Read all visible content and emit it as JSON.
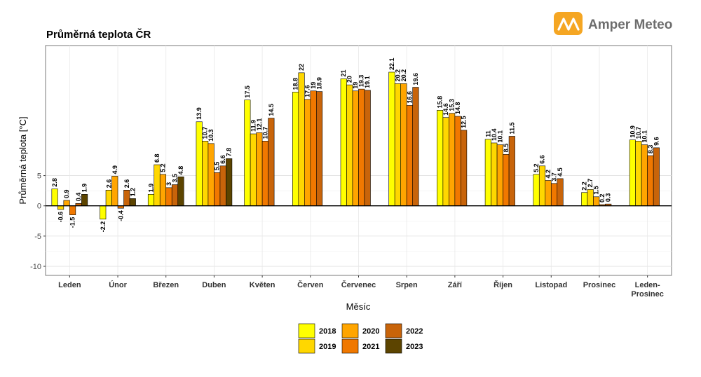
{
  "brand": {
    "name": "Amper Meteo",
    "accent": "#f5a623"
  },
  "chart_data": {
    "type": "bar",
    "title": "Průměrná teplota ČR",
    "xlabel": "Měsíc",
    "ylabel": "Průměrná teplota [°C]",
    "ylim": [
      -11.5,
      26.5
    ],
    "yticks": [
      -10,
      -5,
      0,
      5
    ],
    "grid": true,
    "legend_position": "bottom",
    "categories": [
      [
        "Leden"
      ],
      [
        "Únor"
      ],
      [
        "Březen"
      ],
      [
        "Duben"
      ],
      [
        "Květen"
      ],
      [
        "Červen"
      ],
      [
        "Červenec"
      ],
      [
        "Srpen"
      ],
      [
        "Září"
      ],
      [
        "Říjen"
      ],
      [
        "Listopad"
      ],
      [
        "Prosinec"
      ],
      [
        "Leden-",
        "Prosinec"
      ]
    ],
    "series": [
      {
        "name": "2018",
        "color": "#ffff00",
        "values": [
          2.8,
          -2.2,
          1.9,
          13.9,
          17.5,
          18.8,
          21,
          22.1,
          15.8,
          11,
          5.2,
          2.2,
          10.9
        ]
      },
      {
        "name": "2019",
        "color": "#ffd700",
        "values": [
          -0.6,
          2.6,
          6.8,
          10.7,
          11.9,
          22,
          20,
          20.2,
          14.6,
          10.4,
          6.6,
          2.7,
          10.7
        ]
      },
      {
        "name": "2020",
        "color": "#ffa500",
        "values": [
          0.9,
          4.9,
          5.2,
          10.3,
          12.1,
          17.6,
          19,
          20.2,
          15.3,
          10.1,
          4.2,
          1.5,
          10.1
        ]
      },
      {
        "name": "2021",
        "color": "#f07800",
        "values": [
          -1.5,
          -0.4,
          3,
          5.5,
          10.7,
          19,
          19.3,
          16.6,
          14.8,
          8.5,
          3.7,
          0.2,
          8.3
        ]
      },
      {
        "name": "2022",
        "color": "#c8640a",
        "values": [
          0.4,
          2.6,
          3.5,
          6.6,
          14.5,
          18.9,
          19.1,
          19.6,
          12.5,
          11.5,
          4.5,
          0.3,
          9.6
        ]
      },
      {
        "name": "2023",
        "color": "#5c4400",
        "values": [
          1.9,
          1.2,
          4.8,
          7.8,
          null,
          null,
          null,
          null,
          null,
          null,
          null,
          null,
          null
        ]
      }
    ]
  }
}
